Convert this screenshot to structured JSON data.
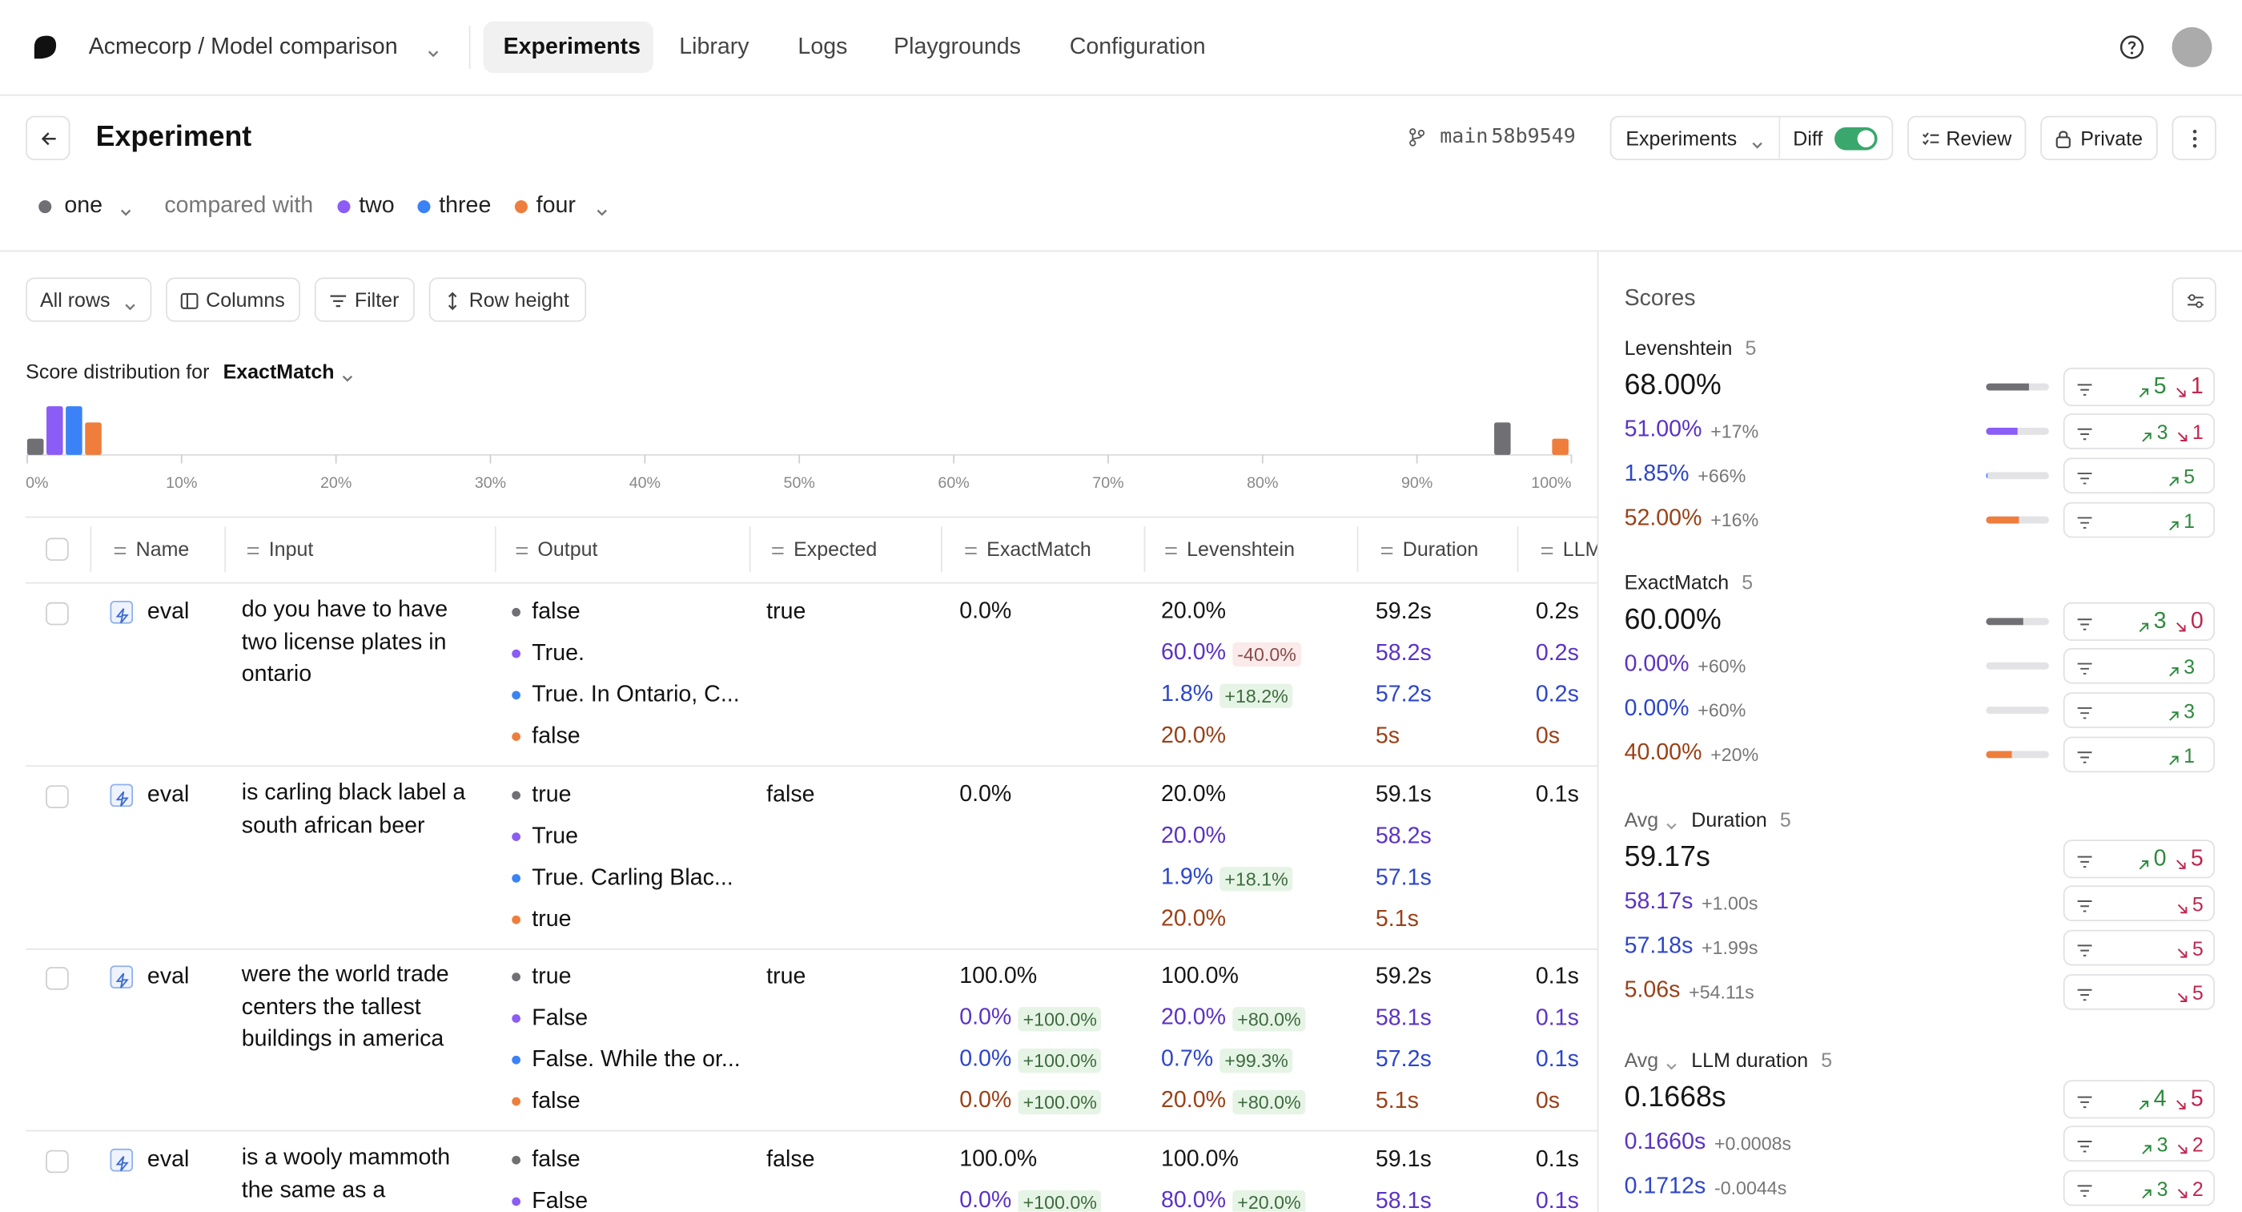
{
  "nav": {
    "org": "Acmecorp / Model comparison",
    "tabs": [
      "Experiments",
      "Library",
      "Logs",
      "Playgrounds",
      "Configuration"
    ],
    "active_tab": 0
  },
  "header": {
    "title": "Experiment",
    "branch": "main",
    "commit": "58b9549",
    "view": "Experiments",
    "diff": "Diff",
    "review": "Review",
    "visibility": "Private"
  },
  "comparison": {
    "label": "compared with"
  },
  "experiments": [
    {
      "name": "one",
      "color": "#6f6f74",
      "text_color": "#161618"
    },
    {
      "name": "two",
      "color": "#8b5cf6",
      "text_color": "#5b33c4"
    },
    {
      "name": "three",
      "color": "#3b82f6",
      "text_color": "#2d46c7"
    },
    {
      "name": "four",
      "color": "#ef7d3c",
      "text_color": "#9a4118"
    }
  ],
  "toolbar": [
    "All rows",
    "Columns",
    "Filter",
    "Row height"
  ],
  "distribution": {
    "label": "Score distribution for",
    "metric": "ExactMatch",
    "bins": [
      {
        "from": 0,
        "to": 5
      },
      {
        "from": 95,
        "to": 100
      }
    ],
    "series": [
      {
        "values": [
          1,
          2
        ]
      },
      {
        "values": [
          3,
          0
        ]
      },
      {
        "values": [
          3,
          0
        ]
      },
      {
        "values": [
          2,
          1
        ]
      }
    ],
    "xlim": [
      0,
      100
    ],
    "ylim": [
      0,
      3
    ],
    "xticks": [
      {
        "value": 0,
        "label": "0%"
      },
      {
        "value": 10,
        "label": "10%"
      },
      {
        "value": 20,
        "label": "20%"
      },
      {
        "value": 30,
        "label": "30%"
      },
      {
        "value": 40,
        "label": "40%"
      },
      {
        "value": 50,
        "label": "50%"
      },
      {
        "value": 60,
        "label": "60%"
      },
      {
        "value": 70,
        "label": "70%"
      },
      {
        "value": 80,
        "label": "80%"
      },
      {
        "value": 90,
        "label": "90%"
      },
      {
        "value": 100,
        "label": "100%"
      }
    ]
  },
  "table": {
    "columns": [
      "Name",
      "Input",
      "Output",
      "Expected",
      "ExactMatch",
      "Levenshtein",
      "Duration",
      "LLM"
    ],
    "rows": [
      {
        "name": "eval",
        "input": "do you have to have two license plates in ontario",
        "expected": "true",
        "runs": [
          {
            "output": "false",
            "exact": "0.0%",
            "lev": "20.0%",
            "duration": "59.2s",
            "llm": "0.2s"
          },
          {
            "output": "True.",
            "lev": "60.0%",
            "lev_diff": "-40.0%",
            "duration": "58.2s",
            "llm": "0.2s"
          },
          {
            "output": "True. In Ontario, C...",
            "lev": "1.8%",
            "lev_diff": "+18.2%",
            "duration": "57.2s",
            "llm": "0.2s"
          },
          {
            "output": "false",
            "lev": "20.0%",
            "duration": "5s",
            "llm": "0s"
          }
        ]
      },
      {
        "name": "eval",
        "input": "is carling black label a south african beer",
        "expected": "false",
        "runs": [
          {
            "output": "true",
            "exact": "0.0%",
            "lev": "20.0%",
            "duration": "59.1s",
            "llm": "0.1s"
          },
          {
            "output": "True",
            "lev": "20.0%",
            "duration": "58.2s"
          },
          {
            "output": "True. Carling Blac...",
            "lev": "1.9%",
            "lev_diff": "+18.1%",
            "duration": "57.1s"
          },
          {
            "output": "true",
            "lev": "20.0%",
            "duration": "5.1s"
          }
        ]
      },
      {
        "name": "eval",
        "input": "were the world trade centers the tallest buildings in america",
        "expected": "true",
        "runs": [
          {
            "output": "true",
            "exact": "100.0%",
            "lev": "100.0%",
            "duration": "59.2s",
            "llm": "0.1s"
          },
          {
            "output": "False",
            "exact": "0.0%",
            "exact_diff": "+100.0%",
            "lev": "20.0%",
            "lev_diff": "+80.0%",
            "duration": "58.1s",
            "llm": "0.1s"
          },
          {
            "output": "False. While the or...",
            "exact": "0.0%",
            "exact_diff": "+100.0%",
            "lev": "0.7%",
            "lev_diff": "+99.3%",
            "duration": "57.2s",
            "llm": "0.1s"
          },
          {
            "output": "false",
            "exact": "0.0%",
            "exact_diff": "+100.0%",
            "lev": "20.0%",
            "lev_diff": "+80.0%",
            "duration": "5.1s",
            "llm": "0s"
          }
        ]
      },
      {
        "name": "eval",
        "input": "is a wooly mammoth the same as a",
        "expected": "false",
        "runs": [
          {
            "output": "false",
            "exact": "100.0%",
            "lev": "100.0%",
            "duration": "59.1s",
            "llm": "0.1s"
          },
          {
            "output": "False",
            "exact": "0.0%",
            "exact_diff": "+100.0%",
            "lev": "80.0%",
            "lev_diff": "+20.0%",
            "duration": "58.1s",
            "llm": "0.1s"
          }
        ]
      }
    ]
  },
  "scores": {
    "title": "Scores",
    "metrics": [
      {
        "name": "Levenshtein",
        "count": 5,
        "rows": [
          {
            "score": {
              "value": 68,
              "label": "68.00%"
            },
            "up": 5,
            "down": 1
          },
          {
            "score": {
              "value": 51,
              "label": "51.00%"
            },
            "diff": "+17%",
            "up": 3,
            "down": 1
          },
          {
            "score": {
              "value": 1.85,
              "label": "1.85%"
            },
            "diff": "+66%",
            "up": 5
          },
          {
            "score": {
              "value": 52,
              "label": "52.00%"
            },
            "diff": "+16%",
            "up": 1
          }
        ]
      },
      {
        "name": "ExactMatch",
        "count": 5,
        "rows": [
          {
            "score": {
              "value": 60,
              "label": "60.00%"
            },
            "up": 3,
            "down": 0
          },
          {
            "score": {
              "value": 0,
              "label": "0.00%"
            },
            "diff": "+60%",
            "up": 3
          },
          {
            "score": {
              "value": 0,
              "label": "0.00%"
            },
            "diff": "+60%",
            "up": 3
          },
          {
            "score": {
              "value": 40,
              "label": "40.00%"
            },
            "diff": "+20%",
            "up": 1
          }
        ]
      },
      {
        "agg": "Avg",
        "name": "Duration",
        "count": 5,
        "rows": [
          {
            "score": "59.17s",
            "up": 0,
            "down": 5
          },
          {
            "score": "58.17s",
            "diff": "+1.00s",
            "down": 5
          },
          {
            "score": "57.18s",
            "diff": "+1.99s",
            "down": 5
          },
          {
            "score": "5.06s",
            "diff": "+54.11s",
            "down": 5
          }
        ]
      },
      {
        "agg": "Avg",
        "name": "LLM duration",
        "count": 5,
        "rows": [
          {
            "score": "0.1668s",
            "up": 4,
            "down": 5
          },
          {
            "score": "0.1660s",
            "diff": "+0.0008s",
            "up": 3,
            "down": 2
          },
          {
            "score": "0.1712s",
            "diff": "-0.0044s",
            "up": 3,
            "down": 2
          }
        ]
      }
    ]
  }
}
